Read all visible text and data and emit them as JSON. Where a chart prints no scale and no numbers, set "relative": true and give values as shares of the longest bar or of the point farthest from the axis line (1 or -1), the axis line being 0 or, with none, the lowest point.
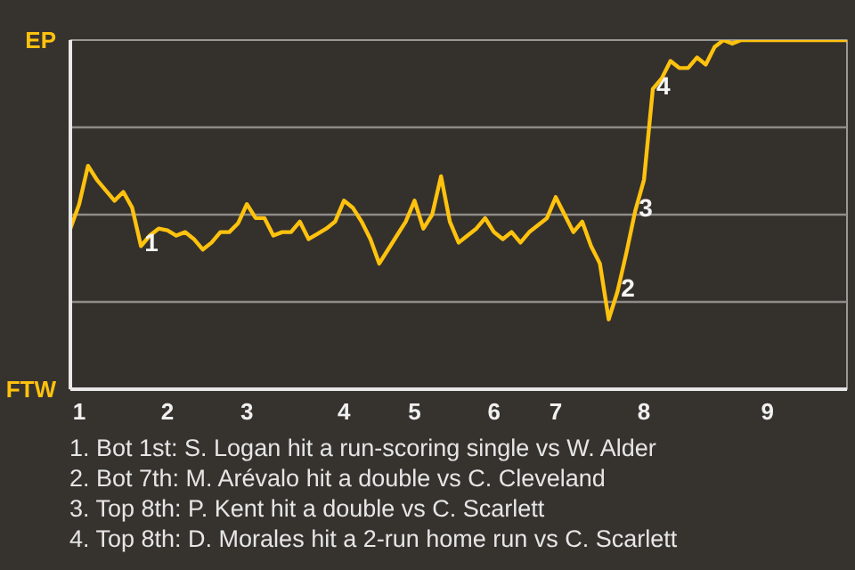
{
  "chart_data": {
    "type": "line",
    "relative": true,
    "categories": [
      null,
      "1",
      null,
      null,
      null,
      null,
      null,
      null,
      null,
      null,
      null,
      "2",
      null,
      null,
      null,
      null,
      null,
      null,
      null,
      null,
      "3",
      null,
      null,
      null,
      null,
      null,
      null,
      null,
      null,
      null,
      null,
      "4",
      null,
      null,
      null,
      null,
      null,
      null,
      null,
      "5",
      null,
      null,
      null,
      null,
      null,
      null,
      null,
      null,
      "6",
      null,
      null,
      null,
      null,
      null,
      null,
      "7",
      null,
      null,
      null,
      null,
      null,
      null,
      null,
      null,
      null,
      "8",
      null,
      null,
      null,
      null,
      null,
      null,
      null,
      null,
      null,
      null,
      null,
      null,
      null,
      "9",
      null,
      null,
      null,
      null,
      null,
      null,
      null,
      null,
      null
    ],
    "series": [
      {
        "color": "#ffc20e",
        "values": [
          0.46,
          0.53,
          0.64,
          0.6,
          0.57,
          0.54,
          0.565,
          0.52,
          0.41,
          0.44,
          0.46,
          0.455,
          0.44,
          0.45,
          0.43,
          0.4,
          0.42,
          0.45,
          0.45,
          0.475,
          0.53,
          0.49,
          0.49,
          0.44,
          0.45,
          0.45,
          0.48,
          0.43,
          0.445,
          0.46,
          0.48,
          0.54,
          0.52,
          0.48,
          0.43,
          0.36,
          0.4,
          0.44,
          0.48,
          0.54,
          0.46,
          0.5,
          0.61,
          0.48,
          0.42,
          0.44,
          0.46,
          0.49,
          0.45,
          0.43,
          0.45,
          0.42,
          0.45,
          0.47,
          0.49,
          0.55,
          0.5,
          0.45,
          0.48,
          0.41,
          0.36,
          0.2,
          0.28,
          0.39,
          0.51,
          0.6,
          0.86,
          0.89,
          0.94,
          0.92,
          0.92,
          0.95,
          0.93,
          0.98,
          1.0,
          0.99,
          1.0,
          1.0,
          1.0,
          1.0,
          1.0,
          1.0,
          1.0,
          1.0,
          1.0,
          1.0,
          1.0,
          1.0,
          1.0
        ]
      }
    ],
    "ref_lines": [
      {
        "axis": "y",
        "value": 0.25,
        "label": null,
        "color": "#8e8c88"
      },
      {
        "axis": "y",
        "value": 0.5,
        "label": null,
        "color": "#8e8c88"
      },
      {
        "axis": "y",
        "value": 0.75,
        "label": null,
        "color": "#8e8c88"
      }
    ],
    "annotations": [
      "EP",
      "FTW",
      {
        "text": "1",
        "y": 0.41
      },
      {
        "text": "2",
        "y": 0.28
      },
      {
        "text": "3",
        "y": 0.51
      },
      {
        "text": "4",
        "y": 0.86
      },
      "1. Bot 1st: S. Logan hit a run-scoring single vs W. Alder",
      "2. Bot 7th: M. Arévalo hit a double vs C. Cleveland",
      "3. Top 8th: P. Kent hit a double vs C. Scarlett",
      "4. Top 8th: D. Morales hit a 2-run home run vs C. Scarlett"
    ]
  }
}
